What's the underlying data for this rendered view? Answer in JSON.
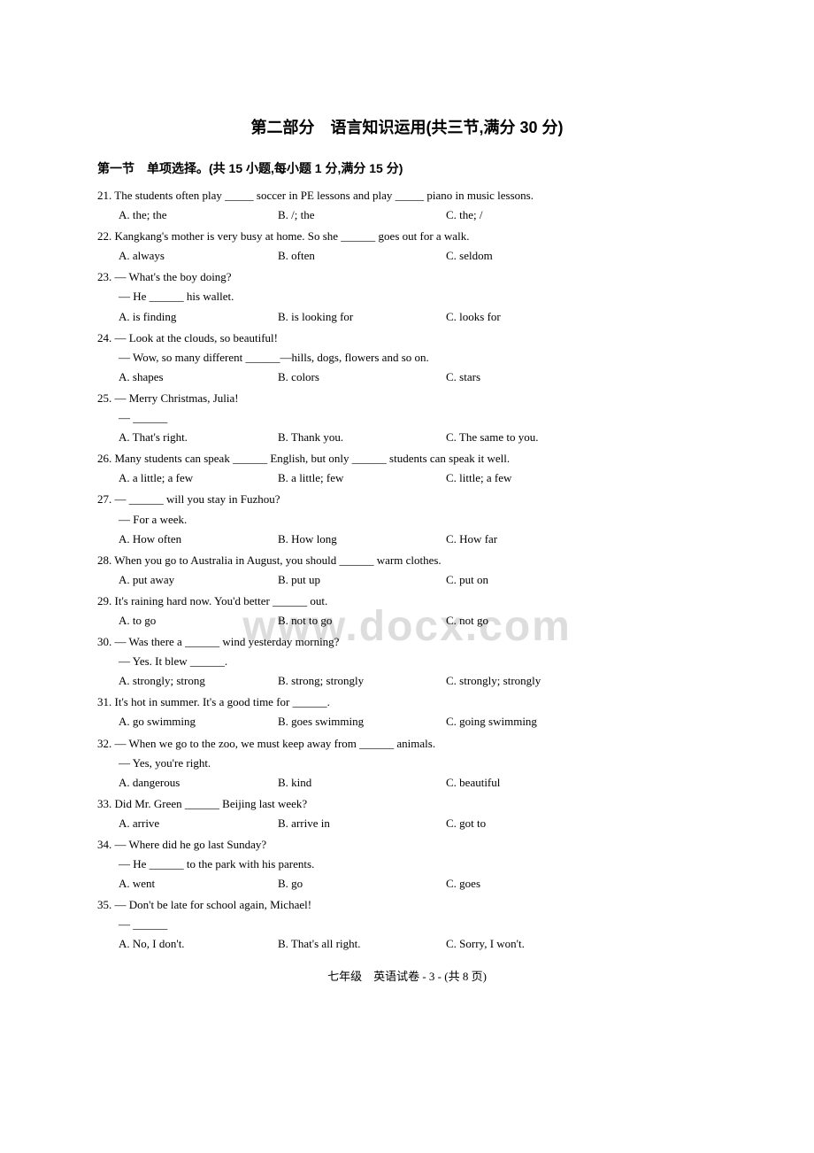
{
  "title": "第二部分　语言知识运用(共三节,满分 30 分)",
  "section_header": "第一节　单项选择。(共 15 小题,每小题 1 分,满分 15 分)",
  "watermark": "www.docx.com",
  "footer": "七年级　英语试卷 - 3 - (共 8 页)",
  "questions": [
    {
      "num": "21.",
      "text": "The students often play _____ soccer in PE lessons and play _____ piano in music lessons.",
      "a": "A. the; the",
      "b": "B. /; the",
      "c": "C. the; /"
    },
    {
      "num": "22.",
      "text": "Kangkang's mother is very busy at home. So she ______ goes out for a walk.",
      "a": "A. always",
      "b": "B. often",
      "c": "C. seldom"
    },
    {
      "num": "23.",
      "text": "— What's the boy doing?",
      "sub": "— He ______ his wallet.",
      "a": "A. is finding",
      "b": "B. is looking for",
      "c": "C. looks for"
    },
    {
      "num": "24.",
      "text": "— Look at the clouds, so beautiful!",
      "sub": "— Wow, so many different ______—hills, dogs, flowers and so on.",
      "a": "A. shapes",
      "b": "B. colors",
      "c": "C. stars"
    },
    {
      "num": "25.",
      "text": "— Merry Christmas, Julia!",
      "sub": "— ______",
      "a": "A. That's right.",
      "b": "B. Thank you.",
      "c": "C. The same to you."
    },
    {
      "num": "26.",
      "text": "Many students can speak ______ English, but only ______ students can speak it well.",
      "a": "A. a little; a few",
      "b": "B. a little; few",
      "c": "C. little; a few"
    },
    {
      "num": "27.",
      "text": "— ______ will you stay in Fuzhou?",
      "sub": "— For a week.",
      "a": "A. How often",
      "b": "B. How long",
      "c": "C. How far"
    },
    {
      "num": "28.",
      "text": "When you go to Australia in August, you should ______ warm clothes.",
      "a": "A. put away",
      "b": "B. put up",
      "c": "C. put on"
    },
    {
      "num": "29.",
      "text": "It's raining hard now. You'd better ______ out.",
      "a": "A. to go",
      "b": "B. not to go",
      "c": "C. not go"
    },
    {
      "num": "30.",
      "text": "— Was there a ______ wind yesterday morning?",
      "sub": "— Yes. It blew ______.",
      "a": "A. strongly; strong",
      "b": "B. strong; strongly",
      "c": "C. strongly; strongly"
    },
    {
      "num": "31.",
      "text": "It's hot in summer. It's a good time for ______.",
      "a": "A. go swimming",
      "b": "B. goes swimming",
      "c": "C. going swimming"
    },
    {
      "num": "32.",
      "text": "— When we go to the zoo, we must keep away from ______ animals.",
      "sub": "— Yes, you're right.",
      "a": "A. dangerous",
      "b": "B. kind",
      "c": "C. beautiful"
    },
    {
      "num": "33.",
      "text": "Did Mr. Green ______ Beijing last week?",
      "a": "A. arrive",
      "b": "B. arrive in",
      "c": "C. got to"
    },
    {
      "num": "34.",
      "text": "— Where did he go last Sunday?",
      "sub": "— He ______ to the park with his parents.",
      "a": "A. went",
      "b": "B. go",
      "c": "C. goes"
    },
    {
      "num": "35.",
      "text": "— Don't be late for school again, Michael!",
      "sub": "— ______",
      "a": "A. No, I don't.",
      "b": "B. That's all right.",
      "c": "C. Sorry, I won't."
    }
  ]
}
